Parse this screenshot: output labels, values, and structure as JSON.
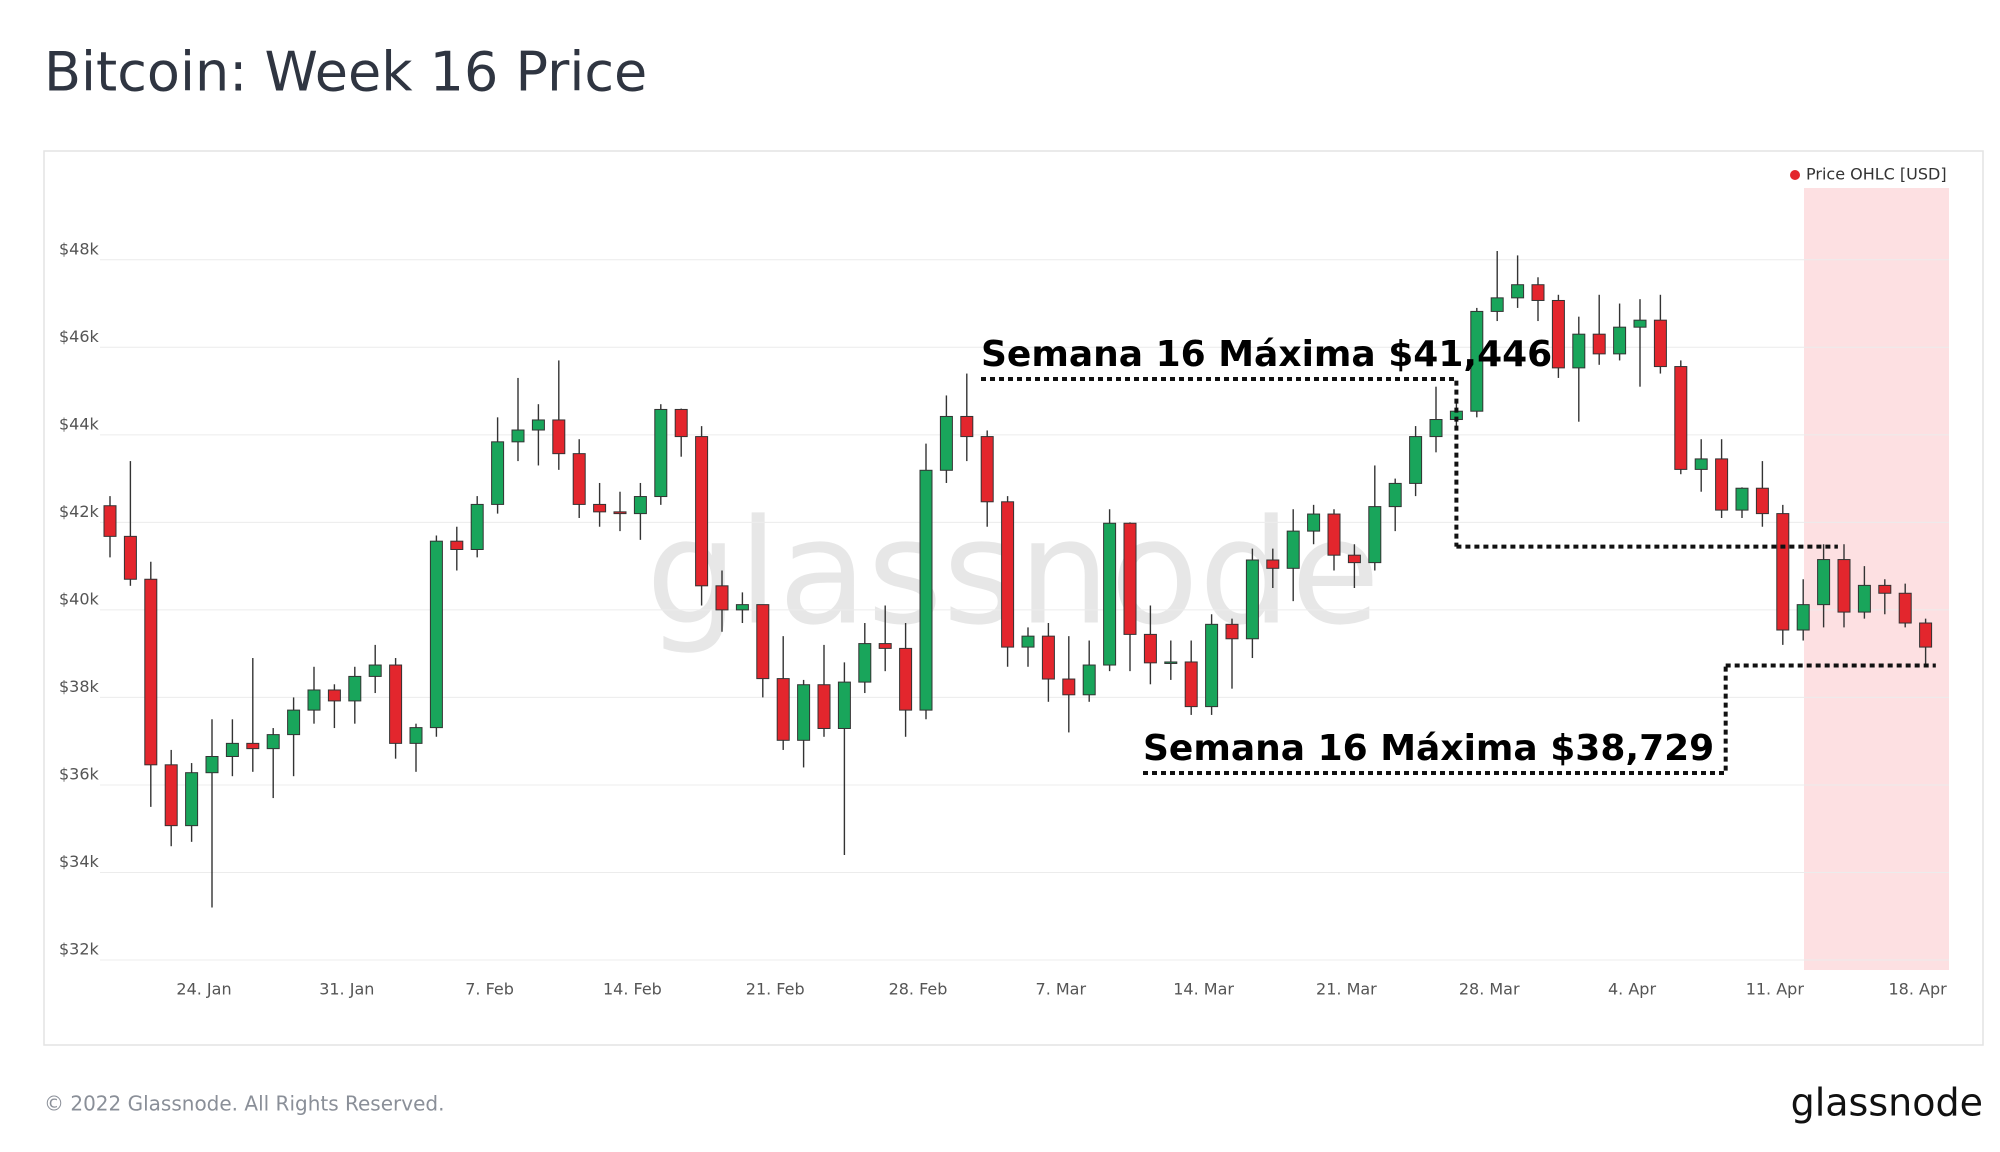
{
  "chart_data": {
    "type": "candlestick",
    "title": "Bitcoin: Week 16 Price",
    "legend": "Price OHLC [USD]",
    "legend_color": "#e3262d",
    "up_color": "#19a55b",
    "down_color": "#e3262d",
    "watermark": "glassnode",
    "footer": "© 2022 Glassnode. All Rights Reserved.",
    "logo": "glassnode",
    "grid": true,
    "ylim": [
      32000,
      49800
    ],
    "yticks": [
      {
        "value": 32000,
        "label": "$32k"
      },
      {
        "value": 34000,
        "label": "$34k"
      },
      {
        "value": 36000,
        "label": "$36k"
      },
      {
        "value": 38000,
        "label": "$38k"
      },
      {
        "value": 40000,
        "label": "$40k"
      },
      {
        "value": 42000,
        "label": "$42k"
      },
      {
        "value": 44000,
        "label": "$44k"
      },
      {
        "value": 46000,
        "label": "$46k"
      },
      {
        "value": 48000,
        "label": "$48k"
      }
    ],
    "categories": [
      null,
      null,
      null,
      null,
      null,
      "24. Jan",
      null,
      null,
      null,
      null,
      null,
      null,
      "31. Jan",
      null,
      null,
      null,
      null,
      null,
      null,
      "7. Feb",
      null,
      null,
      null,
      null,
      null,
      null,
      "14. Feb",
      null,
      null,
      null,
      null,
      null,
      null,
      "21. Feb",
      null,
      null,
      null,
      null,
      null,
      null,
      "28. Feb",
      null,
      null,
      null,
      null,
      null,
      null,
      "7. Mar",
      null,
      null,
      null,
      null,
      null,
      null,
      "14. Mar",
      null,
      null,
      null,
      null,
      null,
      null,
      "21. Mar",
      null,
      null,
      null,
      null,
      null,
      null,
      "28. Mar",
      null,
      null,
      null,
      null,
      null,
      null,
      "4. Apr",
      null,
      null,
      null,
      null,
      null,
      null,
      "11. Apr",
      null,
      null,
      null,
      null,
      null,
      null,
      "18. Apr"
    ],
    "open": [
      42380,
      41680,
      40700,
      36460,
      35070,
      36280,
      36650,
      36950,
      36830,
      37150,
      37710,
      38170,
      37920,
      38480,
      38740,
      36950,
      37310,
      41570,
      41380,
      42410,
      43840,
      44110,
      44340,
      43570,
      42410,
      42240,
      42200,
      42590,
      44580,
      43960,
      40550,
      40000,
      40120,
      38430,
      37020,
      38290,
      37290,
      38350,
      39230,
      39120,
      37710,
      43190,
      44420,
      43960,
      42470,
      39150,
      39400,
      38420,
      38060,
      38740,
      41980,
      39440,
      38790,
      38810,
      37790,
      39670,
      39340,
      41140,
      40950,
      41800,
      42190,
      41250,
      41080,
      42360,
      42890,
      43960,
      44350,
      44540,
      46820,
      47130,
      47430,
      47070,
      45530,
      46300,
      45850,
      46460,
      46620,
      45560,
      43210,
      43450,
      42280,
      42780,
      42200,
      39540,
      40120,
      41150,
      39950,
      40560,
      40380,
      39700
    ],
    "high": [
      42600,
      43400,
      41100,
      36800,
      36500,
      37500,
      37500,
      38900,
      37300,
      38000,
      38700,
      38300,
      38700,
      39200,
      38900,
      37400,
      41700,
      41900,
      42600,
      44400,
      45300,
      44700,
      45700,
      43900,
      42900,
      42700,
      42900,
      44700,
      44600,
      44200,
      40900,
      40400,
      40100,
      39400,
      38400,
      39200,
      38800,
      39700,
      40100,
      39700,
      43800,
      44900,
      45400,
      44100,
      42600,
      39600,
      39700,
      39400,
      39300,
      42300,
      42000,
      40100,
      39300,
      39300,
      39900,
      39800,
      41400,
      41400,
      42300,
      42400,
      42300,
      41500,
      43300,
      43000,
      44200,
      45100,
      44800,
      46900,
      48200,
      48100,
      47600,
      47200,
      46700,
      47200,
      47000,
      47100,
      47200,
      45700,
      43900,
      43900,
      42800,
      43400,
      42400,
      40700,
      41500,
      41500,
      41000,
      40700,
      40600,
      39800
    ],
    "low": [
      41200,
      40550,
      35500,
      34600,
      34700,
      33200,
      36200,
      36300,
      35700,
      36200,
      37400,
      37300,
      37400,
      38100,
      36600,
      36300,
      37100,
      40900,
      41200,
      42200,
      43400,
      43300,
      43200,
      42100,
      41900,
      41800,
      41600,
      42400,
      43500,
      40100,
      39500,
      39700,
      38000,
      36800,
      36400,
      37100,
      34400,
      38100,
      38600,
      37100,
      37500,
      42900,
      43400,
      41900,
      38700,
      38700,
      37900,
      37200,
      37900,
      38600,
      38600,
      38300,
      38400,
      37600,
      37600,
      38200,
      38900,
      40500,
      40200,
      41500,
      40900,
      40500,
      40900,
      41800,
      42600,
      43600,
      44200,
      44400,
      46600,
      46900,
      46600,
      45300,
      44300,
      45600,
      45700,
      45100,
      45400,
      43100,
      42700,
      42100,
      42100,
      41900,
      39200,
      39300,
      39600,
      39600,
      39800,
      39900,
      39600,
      38700
    ],
    "close": [
      41680,
      40700,
      36460,
      35070,
      36280,
      36650,
      36950,
      36830,
      37150,
      37710,
      38170,
      37920,
      38480,
      38740,
      36950,
      37310,
      41570,
      41380,
      42410,
      43840,
      44110,
      44340,
      43570,
      42410,
      42240,
      42200,
      42590,
      44580,
      43960,
      40550,
      40000,
      40120,
      38430,
      37020,
      38290,
      37290,
      38350,
      39230,
      39120,
      37710,
      43190,
      44420,
      43960,
      42470,
      39150,
      39400,
      38420,
      38060,
      38740,
      41980,
      39440,
      38790,
      38810,
      37790,
      39670,
      39340,
      41140,
      40950,
      41800,
      42190,
      41250,
      41080,
      42360,
      42890,
      43960,
      44350,
      44540,
      46820,
      47130,
      47430,
      47070,
      45530,
      46300,
      45850,
      46460,
      46620,
      45560,
      43210,
      43450,
      42280,
      42780,
      42200,
      39540,
      40120,
      41150,
      39950,
      40560,
      40380,
      39700,
      39150
    ],
    "annotations": [
      {
        "text": "Semana 16 Máxima $41,446",
        "value": 41446
      },
      {
        "text": "Semana 16 Máxima $38,729",
        "value": 38729
      }
    ]
  }
}
